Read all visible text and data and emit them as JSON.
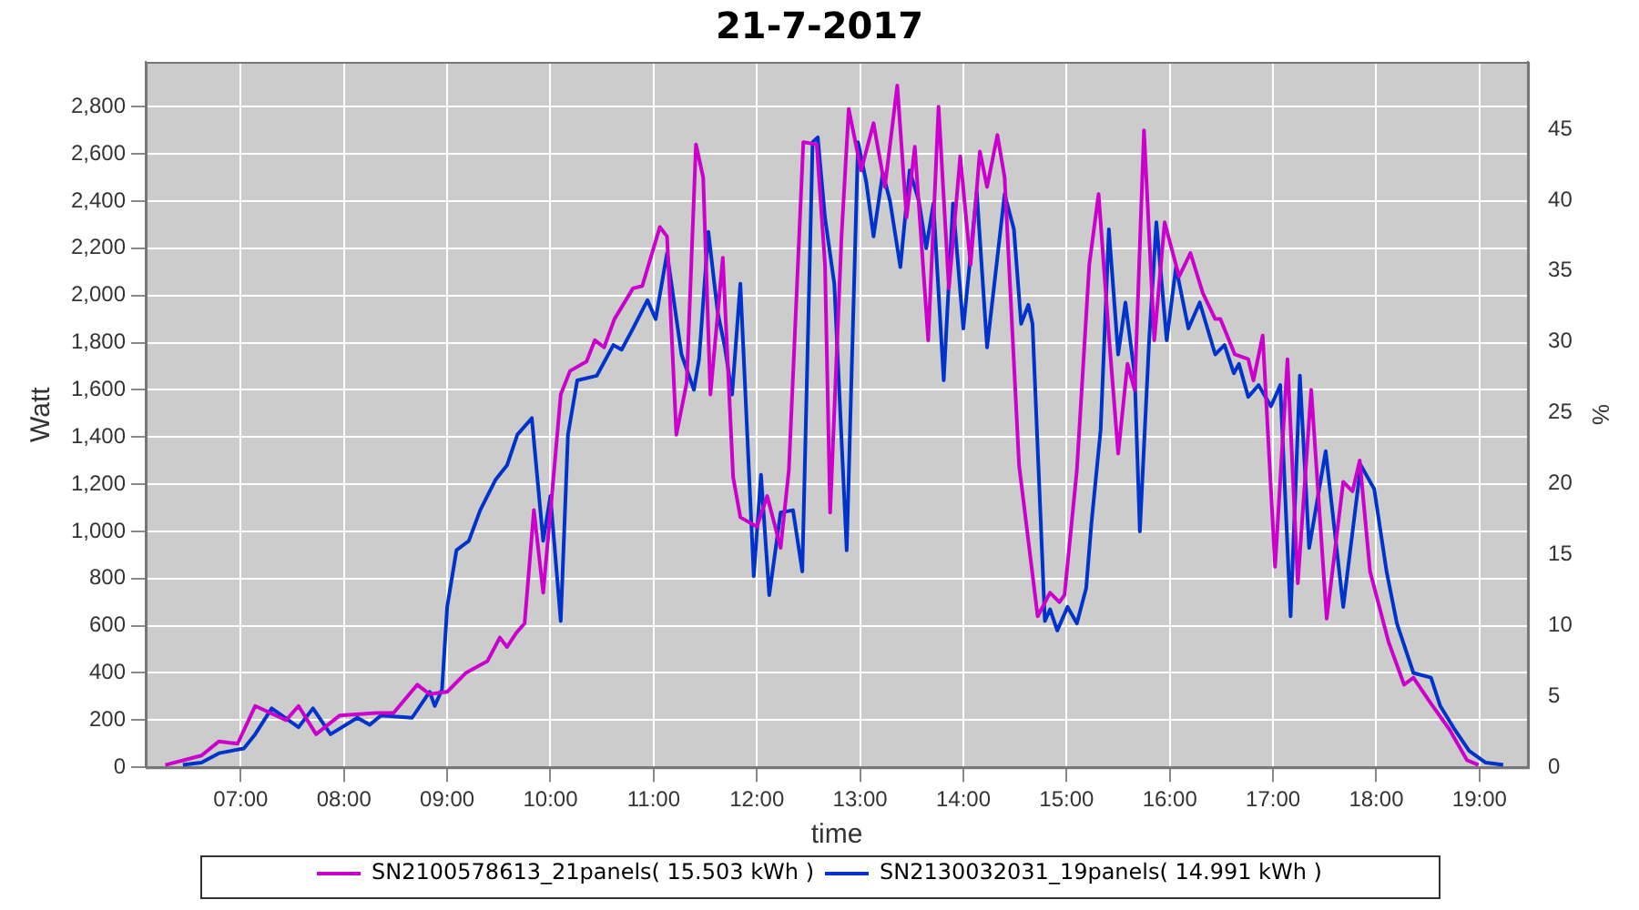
{
  "chart_data": {
    "type": "line",
    "title": "21-7-2017",
    "xlabel": "time",
    "ylabel": "Watt",
    "y2label": "%",
    "xlim": [
      6.08,
      19.47
    ],
    "xticks": [
      {
        "value": 7,
        "label": "07:00"
      },
      {
        "value": 8,
        "label": "08:00"
      },
      {
        "value": 9,
        "label": "09:00"
      },
      {
        "value": 10,
        "label": "10:00"
      },
      {
        "value": 11,
        "label": "11:00"
      },
      {
        "value": 12,
        "label": "12:00"
      },
      {
        "value": 13,
        "label": "13:00"
      },
      {
        "value": 14,
        "label": "14:00"
      },
      {
        "value": 15,
        "label": "15:00"
      },
      {
        "value": 16,
        "label": "16:00"
      },
      {
        "value": 17,
        "label": "17:00"
      },
      {
        "value": 18,
        "label": "18:00"
      },
      {
        "value": 19,
        "label": "19:00"
      }
    ],
    "ylim": [
      0,
      2990
    ],
    "yticks": [
      {
        "value": 0,
        "label": "0"
      },
      {
        "value": 200,
        "label": "200"
      },
      {
        "value": 400,
        "label": "400"
      },
      {
        "value": 600,
        "label": "600"
      },
      {
        "value": 800,
        "label": "800"
      },
      {
        "value": 1000,
        "label": "1,000"
      },
      {
        "value": 1200,
        "label": "1,200"
      },
      {
        "value": 1400,
        "label": "1,400"
      },
      {
        "value": 1600,
        "label": "1,600"
      },
      {
        "value": 1800,
        "label": "1,800"
      },
      {
        "value": 2000,
        "label": "2,000"
      },
      {
        "value": 2200,
        "label": "2,200"
      },
      {
        "value": 2400,
        "label": "2,400"
      },
      {
        "value": 2600,
        "label": "2,600"
      },
      {
        "value": 2800,
        "label": "2,800"
      }
    ],
    "y2lim": [
      0,
      49.75
    ],
    "y2ticks": [
      0,
      5,
      10,
      15,
      20,
      25,
      30,
      35,
      40,
      45
    ],
    "grid": true,
    "legend": "bottom",
    "line_style": "solid",
    "series": [
      {
        "name": "SN2100578613_21panels( 15.503 kWh )",
        "color": "#cc00cc",
        "x": [
          6.27,
          6.62,
          6.79,
          6.97,
          7.14,
          7.44,
          7.56,
          7.73,
          7.96,
          8.31,
          8.48,
          8.71,
          8.83,
          9.0,
          9.18,
          9.39,
          9.51,
          9.58,
          9.67,
          9.75,
          9.84,
          9.93,
          10.01,
          10.1,
          10.19,
          10.35,
          10.43,
          10.52,
          10.62,
          10.8,
          10.89,
          11.06,
          11.13,
          11.22,
          11.32,
          11.41,
          11.48,
          11.55,
          11.67,
          11.77,
          11.84,
          12.0,
          12.1,
          12.23,
          12.31,
          12.45,
          12.58,
          12.66,
          12.71,
          12.82,
          12.89,
          13.01,
          13.13,
          13.24,
          13.36,
          13.45,
          13.53,
          13.66,
          13.76,
          13.86,
          13.97,
          14.07,
          14.16,
          14.23,
          14.33,
          14.4,
          14.54,
          14.72,
          14.84,
          14.93,
          14.98,
          15.1,
          15.22,
          15.31,
          15.41,
          15.5,
          15.59,
          15.66,
          15.75,
          15.85,
          15.95,
          16.09,
          16.2,
          16.32,
          16.44,
          16.49,
          16.63,
          16.76,
          16.81,
          16.9,
          17.02,
          17.14,
          17.24,
          17.37,
          17.52,
          17.68,
          17.77,
          17.84,
          17.94,
          18.12,
          18.27,
          18.36,
          18.53,
          18.71,
          18.88,
          18.99
        ],
        "values": [
          10,
          50,
          110,
          100,
          260,
          200,
          260,
          140,
          220,
          230,
          230,
          350,
          310,
          320,
          400,
          450,
          550,
          510,
          570,
          610,
          1090,
          740,
          1130,
          1580,
          1680,
          1720,
          1810,
          1780,
          1900,
          2030,
          2040,
          2290,
          2250,
          1410,
          1630,
          2640,
          2500,
          1580,
          2160,
          1230,
          1060,
          1020,
          1150,
          930,
          1260,
          2650,
          2640,
          2130,
          1080,
          2250,
          2790,
          2530,
          2730,
          2460,
          2890,
          2330,
          2630,
          1810,
          2800,
          2030,
          2590,
          2130,
          2610,
          2460,
          2680,
          2500,
          1280,
          640,
          740,
          700,
          730,
          1260,
          2130,
          2430,
          1830,
          1330,
          1710,
          1600,
          2700,
          1810,
          2310,
          2080,
          2180,
          2010,
          1900,
          1900,
          1750,
          1730,
          1640,
          1830,
          850,
          1730,
          780,
          1600,
          630,
          1210,
          1170,
          1300,
          830,
          530,
          350,
          380,
          270,
          160,
          30,
          10
        ]
      },
      {
        "name": "SN2130032031_19panels( 14.991 kWh )",
        "color": "#0033cc",
        "x": [
          6.44,
          6.62,
          6.79,
          7.03,
          7.14,
          7.3,
          7.56,
          7.7,
          7.87,
          8.13,
          8.25,
          8.36,
          8.66,
          8.83,
          8.88,
          8.95,
          9.0,
          9.09,
          9.21,
          9.32,
          9.47,
          9.58,
          9.68,
          9.82,
          9.93,
          10.0,
          10.1,
          10.17,
          10.26,
          10.45,
          10.61,
          10.69,
          10.8,
          10.94,
          11.02,
          11.13,
          11.27,
          11.39,
          11.44,
          11.53,
          11.62,
          11.69,
          11.76,
          11.84,
          11.97,
          12.04,
          12.12,
          12.23,
          12.35,
          12.44,
          12.54,
          12.59,
          12.66,
          12.75,
          12.87,
          12.98,
          13.06,
          13.13,
          13.22,
          13.29,
          13.39,
          13.48,
          13.57,
          13.64,
          13.71,
          13.81,
          13.9,
          14.0,
          14.13,
          14.23,
          14.4,
          14.49,
          14.56,
          14.63,
          14.67,
          14.79,
          14.84,
          14.91,
          15.01,
          15.1,
          15.19,
          15.24,
          15.33,
          15.41,
          15.5,
          15.57,
          15.66,
          15.71,
          15.8,
          15.87,
          15.97,
          16.06,
          16.18,
          16.29,
          16.44,
          16.53,
          16.62,
          16.67,
          16.76,
          16.86,
          16.98,
          17.07,
          17.17,
          17.26,
          17.35,
          17.51,
          17.68,
          17.85,
          17.98,
          18.1,
          18.2,
          18.36,
          18.53,
          18.62,
          18.76,
          18.9,
          19.06,
          19.23
        ],
        "values": [
          10,
          20,
          60,
          80,
          140,
          250,
          170,
          250,
          140,
          210,
          180,
          220,
          210,
          320,
          260,
          330,
          680,
          920,
          960,
          1090,
          1220,
          1280,
          1410,
          1480,
          960,
          1150,
          620,
          1410,
          1640,
          1660,
          1790,
          1770,
          1860,
          1980,
          1900,
          2180,
          1750,
          1600,
          1730,
          2270,
          1930,
          1780,
          1580,
          2050,
          810,
          1240,
          730,
          1080,
          1090,
          830,
          2650,
          2670,
          2330,
          2050,
          920,
          2650,
          2480,
          2250,
          2520,
          2400,
          2120,
          2530,
          2400,
          2200,
          2390,
          1640,
          2390,
          1860,
          2440,
          1780,
          2430,
          2280,
          1880,
          1960,
          1880,
          620,
          670,
          580,
          680,
          610,
          760,
          1030,
          1430,
          2280,
          1750,
          1970,
          1660,
          1000,
          1810,
          2310,
          1810,
          2120,
          1860,
          1970,
          1750,
          1790,
          1670,
          1710,
          1570,
          1620,
          1530,
          1620,
          640,
          1660,
          930,
          1340,
          680,
          1280,
          1180,
          830,
          610,
          400,
          380,
          260,
          160,
          70,
          20,
          10
        ]
      }
    ]
  }
}
